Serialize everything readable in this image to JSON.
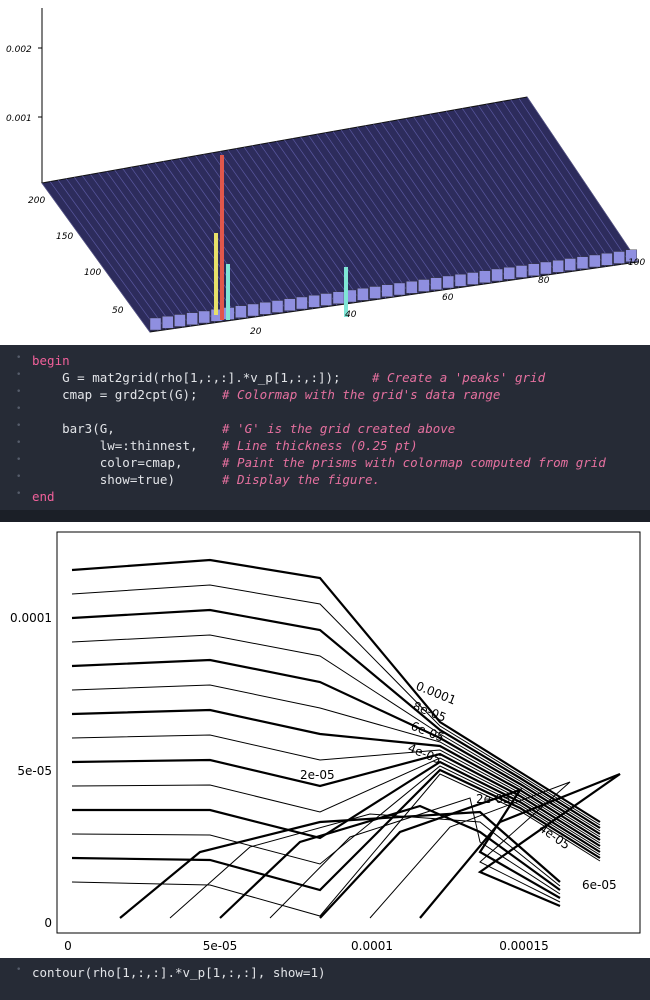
{
  "plot_3d": {
    "z_ticks": [
      "0.002",
      "0.001"
    ],
    "y_ticks": [
      "200",
      "150",
      "100",
      "50"
    ],
    "x_ticks": [
      "20",
      "40",
      "60",
      "80",
      "100"
    ]
  },
  "cell_1": {
    "lines": [
      {
        "code": "begin"
      },
      {
        "code": "    G = mat2grid(rho[1,:,:].*v_p[1,:,:]);",
        "comment": "# Create a 'peaks' grid"
      },
      {
        "code": "    cmap = grd2cpt(G);",
        "comment": "# Colormap with the grid's data range"
      },
      {
        "code": "    bar3(G,",
        "comment": "# 'G' is the grid created above"
      },
      {
        "code": "         lw=:thinnest,",
        "comment": "# Line thickness (0.25 pt)"
      },
      {
        "code": "         color=cmap,",
        "comment": "# Paint the prisms with colormap computed from grid"
      },
      {
        "code": "         show=true)",
        "comment": "# Display the figure."
      },
      {
        "code": "end"
      }
    ]
  },
  "plot_contour": {
    "y_ticks": [
      "0.0001",
      "5e-05",
      "0"
    ],
    "x_ticks": [
      "0",
      "5e-05",
      "0.0001",
      "0.00015"
    ],
    "contour_labels": [
      "0.0001",
      "8e-05",
      "6e-05",
      "4e-05",
      "2e-05",
      "2e-05",
      "4e-05",
      "6e-05"
    ]
  },
  "cell_2": {
    "code": "contour(rho[1,:,:].*v_p[1,:,:], show=1)"
  }
}
